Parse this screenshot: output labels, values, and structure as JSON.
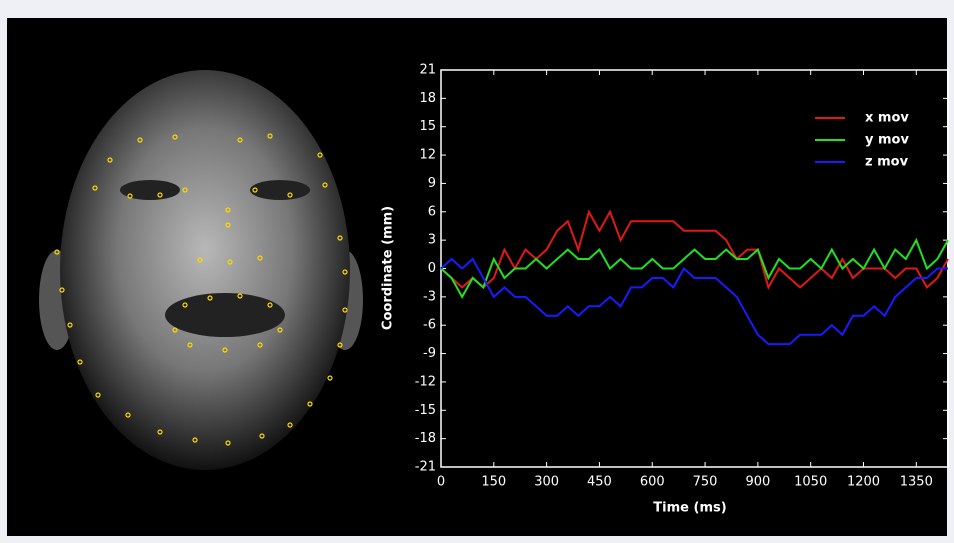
{
  "chart_data": {
    "type": "line",
    "x_label": "Time (ms)",
    "y_label": "Coordinate (mm)",
    "x": [
      0,
      30,
      60,
      90,
      120,
      150,
      180,
      210,
      240,
      270,
      300,
      330,
      360,
      390,
      420,
      450,
      480,
      510,
      540,
      570,
      600,
      630,
      660,
      690,
      720,
      750,
      780,
      810,
      840,
      870,
      900,
      930,
      960,
      990,
      1020,
      1050,
      1080,
      1110,
      1140,
      1170,
      1200,
      1230,
      1260,
      1290,
      1320,
      1350,
      1380,
      1410,
      1440
    ],
    "series": [
      {
        "name": "x mov",
        "color": "#e01818",
        "values": [
          0,
          -1,
          -2,
          -1,
          -2,
          -1,
          2,
          0,
          2,
          1,
          2,
          4,
          5,
          2,
          6,
          4,
          6,
          3,
          5,
          5,
          5,
          5,
          5,
          4,
          4,
          4,
          4,
          3,
          1,
          2,
          2,
          -2,
          0,
          -1,
          -2,
          -1,
          0,
          -1,
          1,
          -1,
          0,
          0,
          0,
          -1,
          0,
          0,
          -2,
          -1,
          1
        ]
      },
      {
        "name": "y mov",
        "color": "#20e020",
        "values": [
          0,
          -1,
          -3,
          -1,
          -2,
          1,
          -1,
          0,
          0,
          1,
          0,
          1,
          2,
          1,
          1,
          2,
          0,
          1,
          0,
          0,
          1,
          0,
          0,
          1,
          2,
          1,
          1,
          2,
          1,
          1,
          2,
          -1,
          1,
          0,
          0,
          1,
          0,
          2,
          0,
          1,
          0,
          2,
          0,
          2,
          1,
          3,
          0,
          1,
          3
        ]
      },
      {
        "name": "z mov",
        "color": "#1a1aff",
        "values": [
          0,
          1,
          0,
          1,
          -1,
          -3,
          -2,
          -3,
          -3,
          -4,
          -5,
          -5,
          -4,
          -5,
          -4,
          -4,
          -3,
          -4,
          -2,
          -2,
          -1,
          -1,
          -2,
          0,
          -1,
          -1,
          -1,
          -2,
          -3,
          -5,
          -7,
          -8,
          -8,
          -8,
          -7,
          -7,
          -7,
          -6,
          -7,
          -5,
          -5,
          -4,
          -5,
          -3,
          -2,
          -1,
          -1,
          0,
          0
        ]
      }
    ],
    "xlim": [
      0,
      1440
    ],
    "xticks": [
      0,
      150,
      300,
      450,
      600,
      750,
      900,
      1050,
      1200,
      1350
    ],
    "ylim": [
      -21,
      21
    ],
    "yticks": [
      -21,
      -18,
      -15,
      -12,
      -9,
      -6,
      -3,
      0,
      3,
      6,
      9,
      12,
      15,
      18,
      21
    ],
    "legend": "top-right",
    "grid": false
  }
}
